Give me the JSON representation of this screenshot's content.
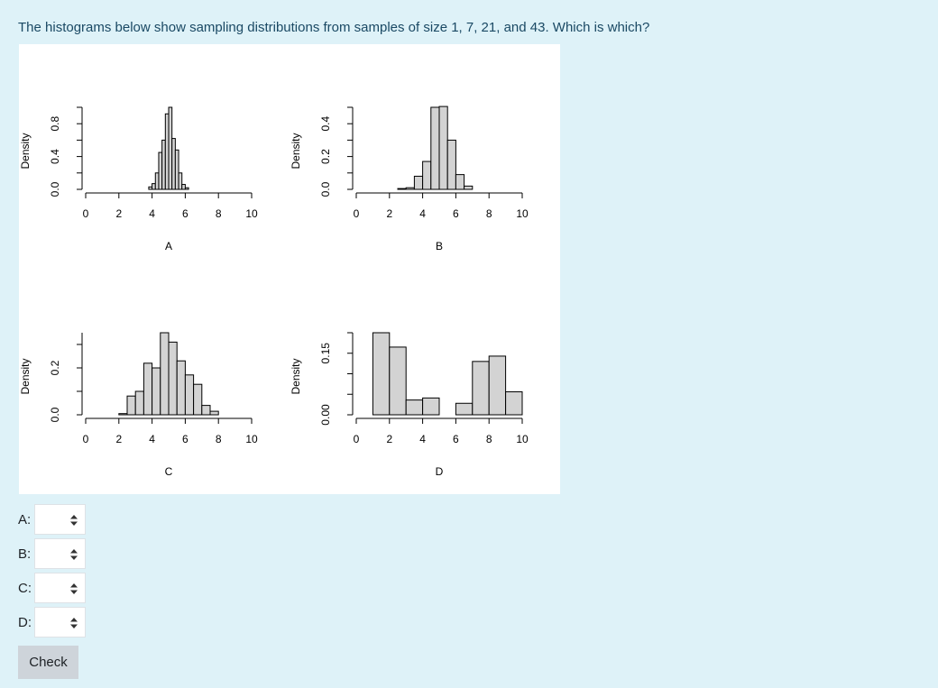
{
  "question": {
    "text": "The histograms below show sampling distributions from samples of size 1, 7, 21, and 43. Which is which?"
  },
  "chart_data": [
    {
      "type": "bar",
      "title": "A",
      "xlabel": "",
      "ylabel": "Density",
      "xlim": [
        0,
        10
      ],
      "ylim": [
        0,
        1.0
      ],
      "x_ticks": [
        "0",
        "2",
        "4",
        "6",
        "8",
        "10"
      ],
      "y_ticks": [
        "0.0",
        "0.4",
        "0.8"
      ],
      "y_tick_values": [
        0.0,
        0.4,
        0.8
      ],
      "y_minor_ticks": [
        0.2,
        0.6,
        1.0
      ],
      "bins": [
        {
          "x0": 3.8,
          "x1": 4.0,
          "value": 0.03
        },
        {
          "x0": 4.0,
          "x1": 4.2,
          "value": 0.07
        },
        {
          "x0": 4.2,
          "x1": 4.4,
          "value": 0.2
        },
        {
          "x0": 4.4,
          "x1": 4.6,
          "value": 0.45
        },
        {
          "x0": 4.6,
          "x1": 4.8,
          "value": 0.6
        },
        {
          "x0": 4.8,
          "x1": 5.0,
          "value": 0.92
        },
        {
          "x0": 5.0,
          "x1": 5.2,
          "value": 1.0
        },
        {
          "x0": 5.2,
          "x1": 5.4,
          "value": 0.62
        },
        {
          "x0": 5.4,
          "x1": 5.6,
          "value": 0.48
        },
        {
          "x0": 5.6,
          "x1": 5.8,
          "value": 0.2
        },
        {
          "x0": 5.8,
          "x1": 6.0,
          "value": 0.06
        },
        {
          "x0": 6.0,
          "x1": 6.2,
          "value": 0.02
        }
      ]
    },
    {
      "type": "bar",
      "title": "B",
      "xlabel": "",
      "ylabel": "Density",
      "xlim": [
        0,
        10
      ],
      "ylim": [
        0,
        0.5
      ],
      "x_ticks": [
        "0",
        "2",
        "4",
        "6",
        "8",
        "10"
      ],
      "y_ticks": [
        "0.0",
        "0.2",
        "0.4"
      ],
      "y_tick_values": [
        0.0,
        0.2,
        0.4
      ],
      "y_minor_ticks": [
        0.1,
        0.3,
        0.5
      ],
      "bins": [
        {
          "x0": 2.5,
          "x1": 3.0,
          "value": 0.005
        },
        {
          "x0": 3.0,
          "x1": 3.5,
          "value": 0.01
        },
        {
          "x0": 3.5,
          "x1": 4.0,
          "value": 0.08
        },
        {
          "x0": 4.0,
          "x1": 4.5,
          "value": 0.17
        },
        {
          "x0": 4.5,
          "x1": 5.0,
          "value": 0.5
        },
        {
          "x0": 5.0,
          "x1": 5.5,
          "value": 0.505
        },
        {
          "x0": 5.5,
          "x1": 6.0,
          "value": 0.3
        },
        {
          "x0": 6.0,
          "x1": 6.5,
          "value": 0.09
        },
        {
          "x0": 6.5,
          "x1": 7.0,
          "value": 0.02
        }
      ]
    },
    {
      "type": "bar",
      "title": "C",
      "xlabel": "",
      "ylabel": "Density",
      "xlim": [
        0,
        10
      ],
      "ylim": [
        0,
        0.35
      ],
      "x_ticks": [
        "0",
        "2",
        "4",
        "6",
        "8",
        "10"
      ],
      "y_ticks": [
        "0.0",
        "0.2"
      ],
      "y_tick_values": [
        0.0,
        0.2
      ],
      "y_minor_ticks": [
        0.1,
        0.3
      ],
      "bins": [
        {
          "x0": 2.0,
          "x1": 2.5,
          "value": 0.005
        },
        {
          "x0": 2.5,
          "x1": 3.0,
          "value": 0.08
        },
        {
          "x0": 3.0,
          "x1": 3.5,
          "value": 0.1
        },
        {
          "x0": 3.5,
          "x1": 4.0,
          "value": 0.22
        },
        {
          "x0": 4.0,
          "x1": 4.5,
          "value": 0.2
        },
        {
          "x0": 4.5,
          "x1": 5.0,
          "value": 0.35
        },
        {
          "x0": 5.0,
          "x1": 5.5,
          "value": 0.31
        },
        {
          "x0": 5.5,
          "x1": 6.0,
          "value": 0.23
        },
        {
          "x0": 6.0,
          "x1": 6.5,
          "value": 0.17
        },
        {
          "x0": 6.5,
          "x1": 7.0,
          "value": 0.13
        },
        {
          "x0": 7.0,
          "x1": 7.5,
          "value": 0.04
        },
        {
          "x0": 7.5,
          "x1": 8.0,
          "value": 0.015
        }
      ]
    },
    {
      "type": "bar",
      "title": "D",
      "xlabel": "",
      "ylabel": "Density",
      "xlim": [
        0,
        10
      ],
      "ylim": [
        0,
        0.2
      ],
      "x_ticks": [
        "0",
        "2",
        "4",
        "6",
        "8",
        "10"
      ],
      "y_ticks": [
        "0.00",
        "0.15"
      ],
      "y_tick_values": [
        0.0,
        0.15
      ],
      "y_minor_ticks": [
        0.05,
        0.1,
        0.2
      ],
      "bins": [
        {
          "x0": 1.0,
          "x1": 2.0,
          "value": 0.2
        },
        {
          "x0": 2.0,
          "x1": 3.0,
          "value": 0.165
        },
        {
          "x0": 3.0,
          "x1": 4.0,
          "value": 0.036
        },
        {
          "x0": 4.0,
          "x1": 5.0,
          "value": 0.041
        },
        {
          "x0": 5.0,
          "x1": 6.0,
          "value": 0.0
        },
        {
          "x0": 6.0,
          "x1": 7.0,
          "value": 0.028
        },
        {
          "x0": 7.0,
          "x1": 8.0,
          "value": 0.13
        },
        {
          "x0": 8.0,
          "x1": 9.0,
          "value": 0.143
        },
        {
          "x0": 9.0,
          "x1": 10.0,
          "value": 0.056
        }
      ]
    }
  ],
  "answers": [
    {
      "label": "A:",
      "selected": ""
    },
    {
      "label": "B:",
      "selected": ""
    },
    {
      "label": "C:",
      "selected": ""
    },
    {
      "label": "D:",
      "selected": ""
    }
  ],
  "icons": {
    "select_arrow": "sort-arrows-icon"
  },
  "colors": {
    "page_background": "#def2f8",
    "bar_fill": "#d3d3d3",
    "question_text": "#1a4964",
    "button_background": "#ced4da"
  },
  "check_button": {
    "label": "Check"
  }
}
